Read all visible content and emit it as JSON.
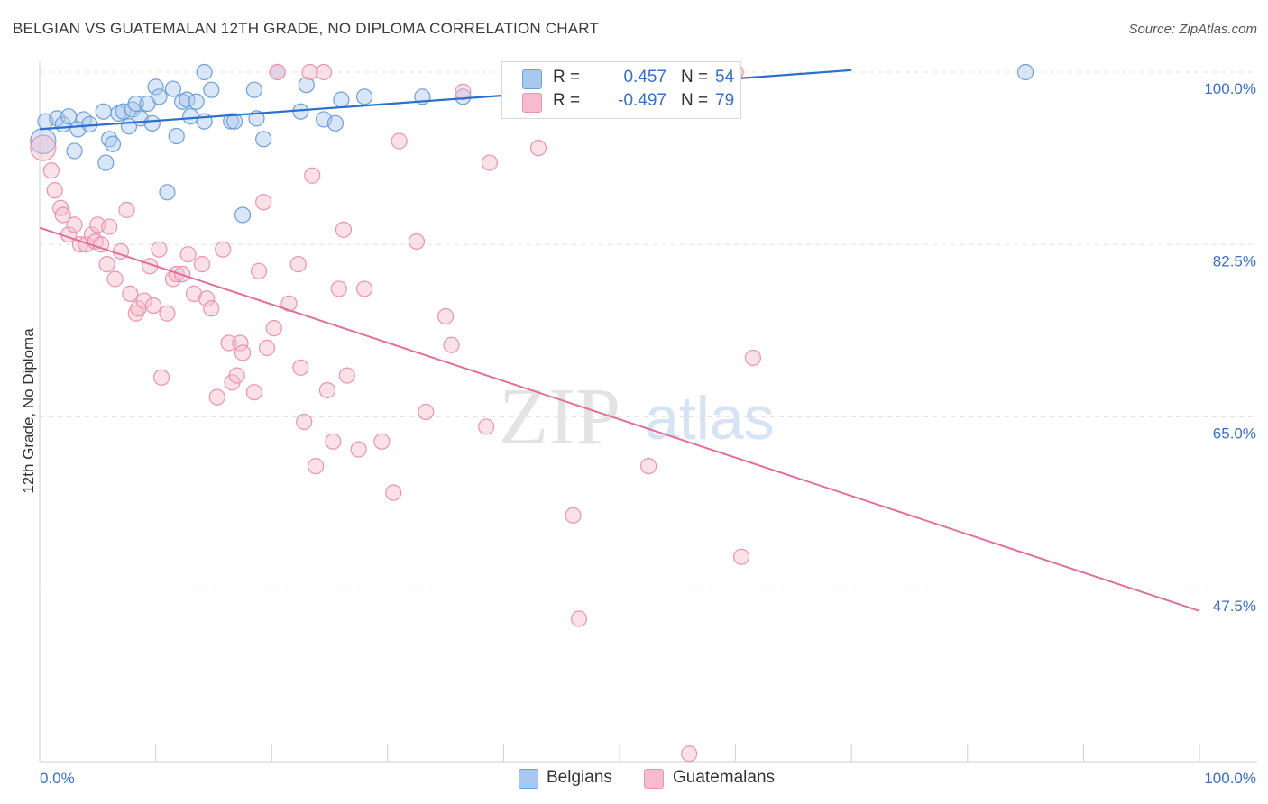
{
  "title": "BELGIAN VS GUATEMALAN 12TH GRADE, NO DIPLOMA CORRELATION CHART",
  "source": "Source: ZipAtlas.com",
  "watermark": {
    "zip": "ZIP",
    "atlas": "atlas"
  },
  "legend": {
    "r_label": "R =",
    "n_label": "N =",
    "rows": [
      {
        "r": "0.457",
        "n": "54"
      },
      {
        "r": "-0.497",
        "n": "79"
      }
    ]
  },
  "bottom_legend": [
    "Belgians",
    "Guatemalans"
  ],
  "colors": {
    "belgian_fill": "#a9c8ee",
    "belgian_stroke": "#6f9fd8",
    "belgian_line": "#2d6fcc",
    "guatemalan_fill": "#f5bccd",
    "guatemalan_stroke": "#e994b0",
    "guatemalan_line": "#e0709a",
    "tick": "#3a6fc4",
    "grid": "#e4e4e4"
  },
  "chart_data": {
    "type": "scatter",
    "title": "BELGIAN VS GUATEMALAN 12TH GRADE, NO DIPLOMA CORRELATION CHART",
    "xlabel": "",
    "ylabel": "12th Grade, No Diploma",
    "x_tick_labels": [
      "0.0%",
      "100.0%"
    ],
    "y_tick_labels": [
      "100.0%",
      "82.5%",
      "65.0%",
      "47.5%"
    ],
    "y_ticks": [
      100,
      82.5,
      65,
      47.5
    ],
    "xlim": [
      0,
      100
    ],
    "ylim": [
      30,
      101.5
    ],
    "grid": true,
    "legend_position": "top-center",
    "series": [
      {
        "name": "Belgians",
        "r": 0.457,
        "n": 54,
        "trend": [
          [
            0,
            94.2
          ],
          [
            70,
            100.2
          ]
        ],
        "points": [
          [
            0.5,
            95
          ],
          [
            0.3,
            93
          ],
          [
            1.5,
            95.3
          ],
          [
            2,
            94.7
          ],
          [
            2.5,
            95.5
          ],
          [
            3,
            92
          ],
          [
            3.3,
            94.2
          ],
          [
            3.8,
            95.2
          ],
          [
            4.3,
            94.7
          ],
          [
            5.5,
            96
          ],
          [
            5.7,
            90.8
          ],
          [
            6,
            93.2
          ],
          [
            6.3,
            92.7
          ],
          [
            6.8,
            95.8
          ],
          [
            7.2,
            96
          ],
          [
            7.7,
            94.5
          ],
          [
            8,
            96.2
          ],
          [
            8.3,
            96.8
          ],
          [
            8.7,
            95.3
          ],
          [
            9.3,
            96.8
          ],
          [
            9.7,
            94.8
          ],
          [
            10,
            98.5
          ],
          [
            10.3,
            97.5
          ],
          [
            11,
            87.8
          ],
          [
            11.5,
            98.3
          ],
          [
            11.8,
            93.5
          ],
          [
            12.3,
            97
          ],
          [
            12.7,
            97.2
          ],
          [
            13,
            95.5
          ],
          [
            13.5,
            97
          ],
          [
            14.2,
            95
          ],
          [
            14.2,
            100
          ],
          [
            14.8,
            98.2
          ],
          [
            16.5,
            95
          ],
          [
            16.8,
            95
          ],
          [
            17.5,
            85.5
          ],
          [
            18.5,
            98.2
          ],
          [
            18.7,
            95.3
          ],
          [
            19.3,
            93.2
          ],
          [
            20.5,
            100
          ],
          [
            22.5,
            96
          ],
          [
            23,
            98.7
          ],
          [
            24.5,
            95.2
          ],
          [
            25.5,
            94.8
          ],
          [
            26,
            97.2
          ],
          [
            28,
            97.5
          ],
          [
            33,
            97.5
          ],
          [
            36.5,
            97.5
          ],
          [
            49,
            100
          ],
          [
            85,
            100
          ]
        ]
      },
      {
        "name": "Guatemalans",
        "r": -0.497,
        "n": 79,
        "trend": [
          [
            0,
            84.2
          ],
          [
            100,
            45.3
          ]
        ],
        "points": [
          [
            0.3,
            92.3
          ],
          [
            1,
            90
          ],
          [
            1.3,
            88
          ],
          [
            1.8,
            86.2
          ],
          [
            2,
            85.5
          ],
          [
            2.5,
            83.5
          ],
          [
            3,
            84.5
          ],
          [
            3.5,
            82.5
          ],
          [
            4,
            82.5
          ],
          [
            4.5,
            83.5
          ],
          [
            4.8,
            82.8
          ],
          [
            5,
            84.5
          ],
          [
            5.3,
            82.5
          ],
          [
            5.8,
            80.5
          ],
          [
            6,
            84.3
          ],
          [
            6.5,
            79
          ],
          [
            7,
            81.8
          ],
          [
            7.5,
            86
          ],
          [
            7.8,
            77.5
          ],
          [
            8.3,
            75.5
          ],
          [
            8.5,
            76
          ],
          [
            9,
            76.8
          ],
          [
            9.5,
            80.3
          ],
          [
            9.8,
            76.3
          ],
          [
            10.3,
            82
          ],
          [
            10.5,
            69
          ],
          [
            11,
            75.5
          ],
          [
            11.5,
            79
          ],
          [
            11.8,
            79.5
          ],
          [
            12.3,
            79.5
          ],
          [
            12.8,
            81.5
          ],
          [
            13.3,
            77.5
          ],
          [
            14,
            80.5
          ],
          [
            14.4,
            77
          ],
          [
            14.8,
            76
          ],
          [
            15.3,
            67
          ],
          [
            15.8,
            82
          ],
          [
            16.3,
            72.5
          ],
          [
            16.6,
            68.5
          ],
          [
            17,
            69.2
          ],
          [
            17.3,
            72.5
          ],
          [
            17.5,
            71.5
          ],
          [
            18.5,
            67.5
          ],
          [
            18.9,
            79.8
          ],
          [
            19.3,
            86.8
          ],
          [
            19.6,
            72
          ],
          [
            20.2,
            74
          ],
          [
            20.5,
            100
          ],
          [
            21.5,
            76.5
          ],
          [
            22.3,
            80.5
          ],
          [
            22.5,
            70
          ],
          [
            22.8,
            64.5
          ],
          [
            23.3,
            100
          ],
          [
            23.5,
            89.5
          ],
          [
            23.8,
            60
          ],
          [
            24.5,
            100
          ],
          [
            24.8,
            67.7
          ],
          [
            25.3,
            62.5
          ],
          [
            25.8,
            78
          ],
          [
            26.2,
            84
          ],
          [
            26.5,
            69.2
          ],
          [
            27.5,
            61.7
          ],
          [
            28,
            78
          ],
          [
            29.5,
            62.5
          ],
          [
            30.5,
            57.3
          ],
          [
            31,
            93
          ],
          [
            32.5,
            82.8
          ],
          [
            33.3,
            65.5
          ],
          [
            35,
            75.2
          ],
          [
            35.5,
            72.3
          ],
          [
            36.5,
            98
          ],
          [
            38.5,
            64
          ],
          [
            38.8,
            90.8
          ],
          [
            43,
            92.3
          ],
          [
            46,
            55
          ],
          [
            46.5,
            44.5
          ],
          [
            52.5,
            60
          ],
          [
            56,
            30.8
          ],
          [
            60,
            100
          ],
          [
            60.5,
            50.8
          ],
          [
            61.5,
            71
          ]
        ]
      }
    ]
  }
}
